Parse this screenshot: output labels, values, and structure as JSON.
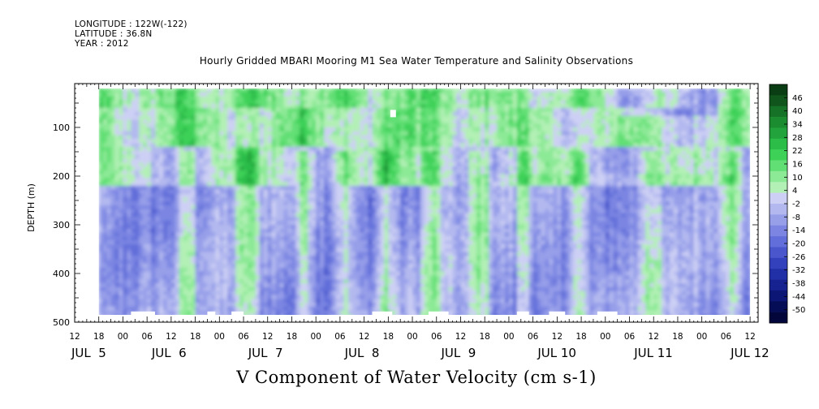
{
  "header": {
    "longitude": "LONGITUDE : 122W(-122)",
    "latitude": "LATITUDE : 36.8N",
    "year": "YEAR : 2012"
  },
  "chart_data": {
    "type": "heatmap",
    "title": "Hourly Gridded MBARI Mooring M1 Sea Water Temperature and Salinity Observations",
    "footer_title": "V Component of Water Velocity (cm s-1)",
    "ylabel": "DEPTH (m)",
    "y_reversed": true,
    "ylim": [
      500,
      10
    ],
    "y_ticks": [
      100,
      200,
      300,
      400,
      500
    ],
    "x_range_hours": [
      "JUL 5 12:00",
      "JUL 12 14:00"
    ],
    "x_hour_ticks": [
      "12",
      "18",
      "00",
      "06",
      "12",
      "18",
      "00",
      "06",
      "12",
      "18",
      "00",
      "06",
      "12",
      "18",
      "00",
      "06",
      "12",
      "18",
      "00",
      "06",
      "12",
      "18",
      "00",
      "06",
      "12",
      "18",
      "00",
      "06",
      "12"
    ],
    "x_day_labels": [
      "JUL  5",
      "JUL  6",
      "JUL  7",
      "JUL  8",
      "JUL  9",
      "JUL 10",
      "JUL 11",
      "JUL 12"
    ],
    "data_coverage": {
      "start": "JUL 5 18:00",
      "end": "JUL 12 12:00",
      "depth_top": 20,
      "depth_bottom": 485
    },
    "colorbar": {
      "labels": [
        "46",
        "40",
        "34",
        "28",
        "22",
        "16",
        "10",
        "4",
        "-2",
        "-8",
        "-14",
        "-20",
        "-26",
        "-32",
        "-38",
        "-44",
        "-50"
      ],
      "colors": [
        "#0b3d14",
        "#10561c",
        "#167226",
        "#1c8c30",
        "#22a33b",
        "#2cbc48",
        "#3ed158",
        "#62df74",
        "#8ce996",
        "#b2f0b5",
        "#cdd0f4",
        "#b3b9ef",
        "#979fe9",
        "#7c86e2",
        "#626ed9",
        "#4a57cc",
        "#3441bd",
        "#2230a8",
        "#15228f",
        "#0c1674",
        "#060d57",
        "#03063b"
      ]
    },
    "field_description_value_pattern": [
      {
        "depth_range": [
          20,
          140
        ],
        "dominant": "positive 4 to 22 (green)"
      },
      {
        "depth_range": [
          200,
          480
        ],
        "dominant": "negative -2 to -26 (blue) with green columns near JUL 7, JUL 8, JUL 9, JUL 10"
      }
    ]
  }
}
